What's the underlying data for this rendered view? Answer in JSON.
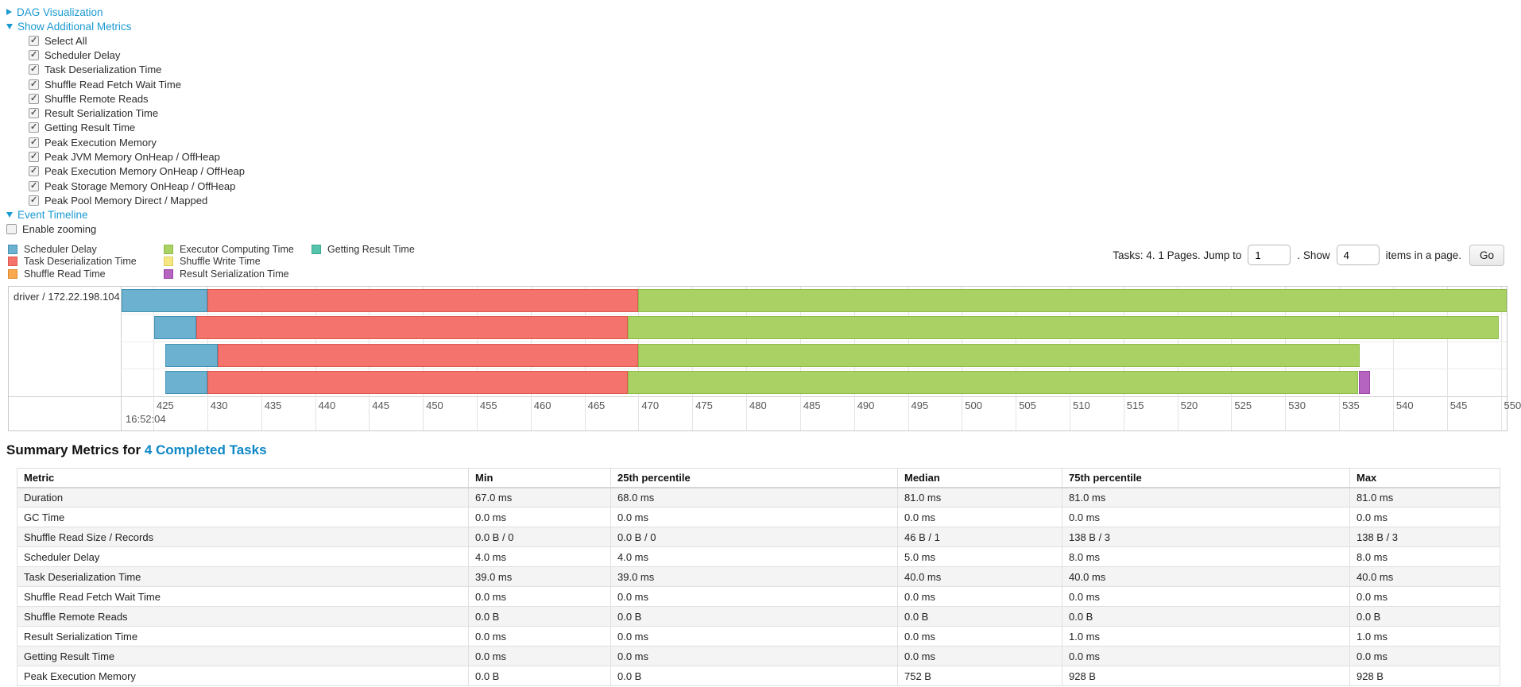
{
  "colors": {
    "link_blue": "#1b9ad2",
    "title_link_blue": "#0d87c6",
    "metrics": {
      "scheduler_delay": {
        "fill": "#6DB1D0",
        "border": "#4292B4"
      },
      "task_deserialization": {
        "fill": "#F4736C",
        "border": "#DE5850"
      },
      "shuffle_read": {
        "fill": "#F8A84E",
        "border": "#E08A2E"
      },
      "executor_computing": {
        "fill": "#A9D163",
        "border": "#8FBC48"
      },
      "shuffle_write": {
        "fill": "#F5E883",
        "border": "#DCCE5A"
      },
      "result_serialization": {
        "fill": "#B564C0",
        "border": "#9946A6"
      },
      "getting_result": {
        "fill": "#56C3AC",
        "border": "#3BA890"
      }
    }
  },
  "nav": {
    "dag_label": "DAG Visualization",
    "metrics_label": "Show Additional Metrics",
    "timeline_label": "Event Timeline",
    "enable_zooming_label": "Enable zooming"
  },
  "metric_checkboxes": [
    {
      "label": "Select All",
      "checked": true
    },
    {
      "label": "Scheduler Delay",
      "checked": true
    },
    {
      "label": "Task Deserialization Time",
      "checked": true
    },
    {
      "label": "Shuffle Read Fetch Wait Time",
      "checked": true
    },
    {
      "label": "Shuffle Remote Reads",
      "checked": true
    },
    {
      "label": "Result Serialization Time",
      "checked": true
    },
    {
      "label": "Getting Result Time",
      "checked": true
    },
    {
      "label": "Peak Execution Memory",
      "checked": true
    },
    {
      "label": "Peak JVM Memory OnHeap / OffHeap",
      "checked": true
    },
    {
      "label": "Peak Execution Memory OnHeap / OffHeap",
      "checked": true
    },
    {
      "label": "Peak Storage Memory OnHeap / OffHeap",
      "checked": true
    },
    {
      "label": "Peak Pool Memory Direct / Mapped",
      "checked": true
    }
  ],
  "legend": {
    "columns": [
      [
        {
          "label": "Scheduler Delay",
          "metric": "scheduler_delay"
        },
        {
          "label": "Task Deserialization Time",
          "metric": "task_deserialization"
        },
        {
          "label": "Shuffle Read Time",
          "metric": "shuffle_read"
        }
      ],
      [
        {
          "label": "Executor Computing Time",
          "metric": "executor_computing"
        },
        {
          "label": "Shuffle Write Time",
          "metric": "shuffle_write"
        },
        {
          "label": "Result Serialization Time",
          "metric": "result_serialization"
        }
      ],
      [
        {
          "label": "Getting Result Time",
          "metric": "getting_result"
        }
      ]
    ]
  },
  "pagination": {
    "label_tasks": "Tasks: 4. 1 Pages. Jump to",
    "jump_value": "1",
    "label_show": ". Show",
    "page_size_value": "4",
    "label_items": "items in a page.",
    "go_label": "Go"
  },
  "chart_data": {
    "type": "timeline-gantt",
    "executor_label": "driver / 172.22.198.104",
    "x_axis": {
      "domain": [
        422.05,
        550.55
      ],
      "tick_min": 425,
      "tick_max": 550,
      "tick_step": 5,
      "major_label": "16:52:04"
    },
    "rows": [
      {
        "segments": [
          {
            "metric": "scheduler_delay",
            "start": 422.05,
            "end": 430.0
          },
          {
            "metric": "task_deserialization",
            "start": 430.0,
            "end": 470.0
          },
          {
            "metric": "executor_computing",
            "start": 470.0,
            "end": 550.55
          }
        ]
      },
      {
        "segments": [
          {
            "metric": "scheduler_delay",
            "start": 425.1,
            "end": 429.0
          },
          {
            "metric": "task_deserialization",
            "start": 429.0,
            "end": 469.0
          },
          {
            "metric": "executor_computing",
            "start": 469.0,
            "end": 549.8
          }
        ]
      },
      {
        "segments": [
          {
            "metric": "scheduler_delay",
            "start": 426.1,
            "end": 431.0
          },
          {
            "metric": "task_deserialization",
            "start": 431.0,
            "end": 470.0
          },
          {
            "metric": "executor_computing",
            "start": 470.0,
            "end": 536.9
          }
        ]
      },
      {
        "segments": [
          {
            "metric": "scheduler_delay",
            "start": 426.1,
            "end": 430.0
          },
          {
            "metric": "task_deserialization",
            "start": 430.0,
            "end": 469.0
          },
          {
            "metric": "executor_computing",
            "start": 469.0,
            "end": 536.8
          },
          {
            "metric": "result_serialization",
            "start": 536.8,
            "end": 537.9
          }
        ]
      }
    ]
  },
  "summary": {
    "title_prefix": "Summary Metrics for ",
    "title_link": "4 Completed Tasks",
    "table": {
      "headers": [
        "Metric",
        "Min",
        "25th percentile",
        "Median",
        "75th percentile",
        "Max"
      ],
      "rows": [
        {
          "metric": "Duration",
          "values": [
            "67.0 ms",
            "68.0 ms",
            "81.0 ms",
            "81.0 ms",
            "81.0 ms"
          ]
        },
        {
          "metric": "GC Time",
          "values": [
            "0.0 ms",
            "0.0 ms",
            "0.0 ms",
            "0.0 ms",
            "0.0 ms"
          ]
        },
        {
          "metric": "Shuffle Read Size / Records",
          "values": [
            "0.0 B / 0",
            "0.0 B / 0",
            "46 B / 1",
            "138 B / 3",
            "138 B / 3"
          ]
        },
        {
          "metric": "Scheduler Delay",
          "values": [
            "4.0 ms",
            "4.0 ms",
            "5.0 ms",
            "8.0 ms",
            "8.0 ms"
          ]
        },
        {
          "metric": "Task Deserialization Time",
          "values": [
            "39.0 ms",
            "39.0 ms",
            "40.0 ms",
            "40.0 ms",
            "40.0 ms"
          ]
        },
        {
          "metric": "Shuffle Read Fetch Wait Time",
          "values": [
            "0.0 ms",
            "0.0 ms",
            "0.0 ms",
            "0.0 ms",
            "0.0 ms"
          ]
        },
        {
          "metric": "Shuffle Remote Reads",
          "values": [
            "0.0 B",
            "0.0 B",
            "0.0 B",
            "0.0 B",
            "0.0 B"
          ]
        },
        {
          "metric": "Result Serialization Time",
          "values": [
            "0.0 ms",
            "0.0 ms",
            "0.0 ms",
            "1.0 ms",
            "1.0 ms"
          ]
        },
        {
          "metric": "Getting Result Time",
          "values": [
            "0.0 ms",
            "0.0 ms",
            "0.0 ms",
            "0.0 ms",
            "0.0 ms"
          ]
        },
        {
          "metric": "Peak Execution Memory",
          "values": [
            "0.0 B",
            "0.0 B",
            "752 B",
            "928 B",
            "928 B"
          ]
        }
      ]
    }
  }
}
